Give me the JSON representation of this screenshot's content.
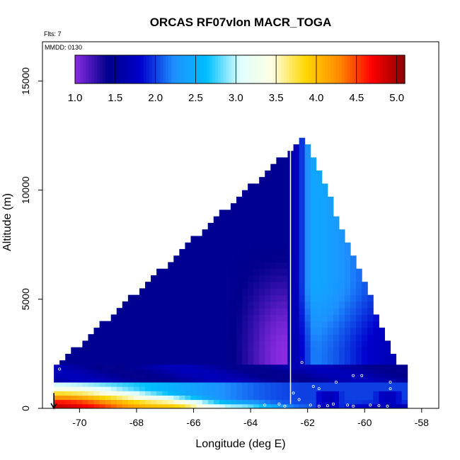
{
  "chart_data": {
    "type": "heatmap",
    "title": "ORCAS RF07vlon MACR_TOGA",
    "subtitle_flts": "Flts: 7",
    "subtitle_mmdd": "MMDD: 0130",
    "xlabel": "Longitude (deg E)",
    "ylabel": "Altitude (m)",
    "xlim": [
      -71.3,
      -57.4
    ],
    "ylim": [
      0,
      16800
    ],
    "x_ticks": [
      -70,
      -68,
      -66,
      -64,
      -62,
      -60,
      -58
    ],
    "y_ticks": [
      0,
      5000,
      10000,
      15000
    ],
    "colorbar": {
      "range": [
        1.0,
        5.1
      ],
      "ticks": [
        "1.0",
        "1.5",
        "2.0",
        "2.5",
        "3.0",
        "3.5",
        "4.0",
        "4.5",
        "5.0"
      ],
      "colors": [
        "#8a2be2",
        "#00008b",
        "#0000cd",
        "#1e90ff",
        "#00bfff",
        "#e0ffff",
        "#ffffe0",
        "#ffd700",
        "#ff8c00",
        "#ff0000",
        "#8b0000"
      ]
    },
    "grid": false,
    "legend": "top, horizontal colorbar",
    "vertical_line_x": -62.6,
    "arrow_x": -70.9,
    "regions": [
      {
        "name": "upper-wedge",
        "lon_start": -70.9,
        "lon_apex": -62.1,
        "lon_end": -58.8,
        "alt_top": 12500,
        "value": 1.45
      },
      {
        "name": "boundary-layer",
        "lon_start": -70.9,
        "lon_end": -58.6,
        "alt_bottom": 0,
        "alt_top": 1900
      }
    ],
    "sample_points": [
      {
        "lon": -70.7,
        "alt": 1800
      },
      {
        "lon": -62.5,
        "alt": 700
      },
      {
        "lon": -62.3,
        "alt": 400
      },
      {
        "lon": -62.2,
        "alt": 2100
      },
      {
        "lon": -61.8,
        "alt": 1000
      },
      {
        "lon": -61.6,
        "alt": 900
      },
      {
        "lon": -61.0,
        "alt": 1200
      },
      {
        "lon": -60.4,
        "alt": 1500
      },
      {
        "lon": -60.1,
        "alt": 1500
      },
      {
        "lon": -59.1,
        "alt": 1200
      },
      {
        "lon": -59.1,
        "alt": 900
      },
      {
        "lon": -58.3,
        "alt": 300
      },
      {
        "lon": -61.9,
        "alt": 150
      },
      {
        "lon": -61.6,
        "alt": 100
      },
      {
        "lon": -61.3,
        "alt": 120
      },
      {
        "lon": -61.1,
        "alt": 200
      },
      {
        "lon": -60.6,
        "alt": 150
      },
      {
        "lon": -60.4,
        "alt": 100
      },
      {
        "lon": -59.8,
        "alt": 150
      },
      {
        "lon": -59.5,
        "alt": 120
      },
      {
        "lon": -59.2,
        "alt": 100
      },
      {
        "lon": -63.5,
        "alt": 150
      },
      {
        "lon": -63.0,
        "alt": 200
      },
      {
        "lon": -62.8,
        "alt": 100
      }
    ]
  }
}
